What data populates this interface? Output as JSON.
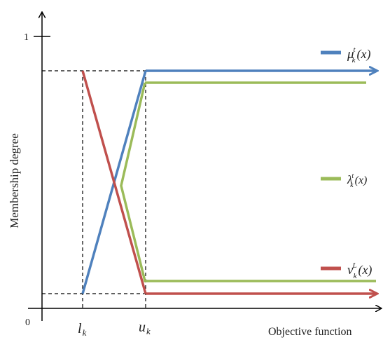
{
  "axes": {
    "y_label": "Membership degree",
    "x_label": "Objective function",
    "origin_label": "0",
    "y_one_label": "1"
  },
  "x_ticks": {
    "lower": {
      "main": "l",
      "sub": "k"
    },
    "upper": {
      "main": "u",
      "sub": "k"
    }
  },
  "legend": [
    {
      "id": "mu",
      "main": "μ",
      "sup": "t",
      "sub": "k",
      "arg": "(x)",
      "color": "#4f81bd"
    },
    {
      "id": "lambda",
      "main": "λ",
      "sup": "t",
      "sub": "k",
      "arg": "(x)",
      "color": "#9bbb59"
    },
    {
      "id": "nu",
      "main": "ν",
      "sup": "L",
      "sub": "k",
      "arg": "(x)",
      "color": "#c0504d"
    }
  ],
  "colors": {
    "axis": "#000000",
    "dashed": "#000000",
    "blue": "#4f81bd",
    "green": "#9bbb59",
    "red": "#c0504d"
  }
}
